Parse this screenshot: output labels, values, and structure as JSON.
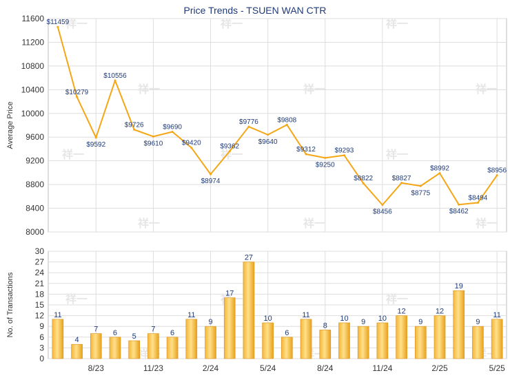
{
  "chart_data": [
    {
      "type": "line",
      "title": "Price Trends - TSUEN WAN CTR",
      "ylabel": "Average Price",
      "ylim": [
        8000,
        11600
      ],
      "yticks": [
        8000,
        8400,
        8800,
        9200,
        9600,
        10000,
        10400,
        10800,
        11200,
        11600
      ],
      "color": "#f5a614",
      "grid": true,
      "values": [
        11459,
        10279,
        9592,
        10556,
        9726,
        9610,
        9690,
        9420,
        8974,
        9362,
        9776,
        9640,
        9808,
        9312,
        9250,
        9293,
        8822,
        8456,
        8827,
        8775,
        8992,
        8462,
        8494,
        8956
      ],
      "labels": [
        "$11459",
        "$10279",
        "$9592",
        "$10556",
        "$9726",
        "$9610",
        "$9690",
        "$9420",
        "$8974",
        "$9362",
        "$9776",
        "$9640",
        "$9808",
        "$9312",
        "$9250",
        "$9293",
        "$8822",
        "$8456",
        "$8827",
        "$8775",
        "$8992",
        "$8462",
        "$8494",
        "$8956"
      ]
    },
    {
      "type": "bar",
      "ylabel": "No. of Transactions",
      "ylim": [
        0,
        30
      ],
      "yticks": [
        0,
        3,
        6,
        9,
        12,
        15,
        18,
        21,
        24,
        27,
        30
      ],
      "color": "#f5a614",
      "grid": true,
      "values": [
        11,
        4,
        7,
        6,
        5,
        7,
        6,
        11,
        9,
        17,
        27,
        10,
        6,
        11,
        8,
        10,
        9,
        10,
        12,
        9,
        12,
        19,
        9,
        11
      ],
      "x_tick_labels": [
        {
          "index": 2,
          "label": "8/23"
        },
        {
          "index": 5,
          "label": "11/23"
        },
        {
          "index": 8,
          "label": "2/24"
        },
        {
          "index": 11,
          "label": "5/24"
        },
        {
          "index": 14,
          "label": "8/24"
        },
        {
          "index": 17,
          "label": "11/24"
        },
        {
          "index": 20,
          "label": "2/25"
        },
        {
          "index": 23,
          "label": "5/25"
        }
      ]
    }
  ],
  "watermark": "祥一"
}
